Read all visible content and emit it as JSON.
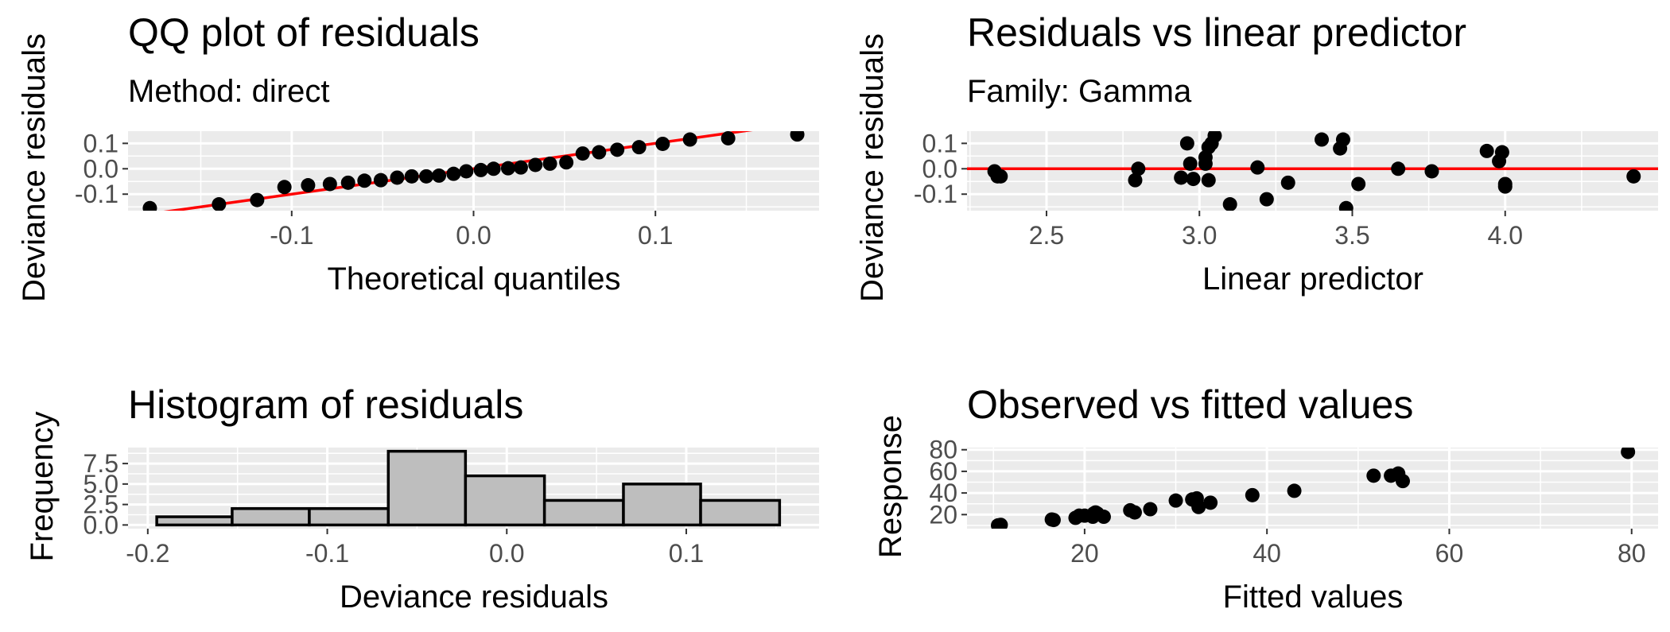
{
  "colors": {
    "panel_background": "#ebebeb",
    "grid": "#ffffff",
    "point": "#000000",
    "reference_line": "#ff0000",
    "bar_fill": "#bebebe",
    "bar_outline": "#000000"
  },
  "chart_data": [
    {
      "id": "qq",
      "type": "scatter",
      "title": "QQ plot of residuals",
      "subtitle": "Method: direct",
      "xlabel": "Theoretical quantiles",
      "ylabel": "Deviance residuals",
      "xlim": [
        -0.19,
        0.19
      ],
      "ylim": [
        -0.165,
        0.148
      ],
      "xticks": [
        -0.1,
        0.0,
        0.1
      ],
      "xtick_labels": [
        "-0.1",
        "0.0",
        "0.1"
      ],
      "yticks": [
        -0.1,
        0.0,
        0.1
      ],
      "ytick_labels": [
        "-0.1",
        "0.0",
        "0.1"
      ],
      "grid": true,
      "reference_line": {
        "color": "#ff0000",
        "x": [
          -0.19,
          0.19
        ],
        "y": [
          -0.19,
          0.19
        ]
      },
      "points": {
        "x": [
          -0.178,
          -0.14,
          -0.119,
          -0.104,
          -0.091,
          -0.079,
          -0.069,
          -0.06,
          -0.051,
          -0.042,
          -0.034,
          -0.026,
          -0.019,
          -0.011,
          -0.004,
          0.004,
          0.011,
          0.019,
          0.026,
          0.034,
          0.042,
          0.051,
          0.06,
          0.069,
          0.079,
          0.091,
          0.104,
          0.119,
          0.14,
          0.178
        ],
        "y": [
          -0.155,
          -0.14,
          -0.123,
          -0.072,
          -0.065,
          -0.06,
          -0.055,
          -0.047,
          -0.045,
          -0.035,
          -0.03,
          -0.03,
          -0.027,
          -0.02,
          -0.01,
          -0.005,
          0.0,
          0.002,
          0.005,
          0.015,
          0.02,
          0.025,
          0.06,
          0.065,
          0.075,
          0.085,
          0.098,
          0.115,
          0.12,
          0.135
        ]
      }
    },
    {
      "id": "resid-lp",
      "type": "scatter",
      "title": "Residuals vs linear predictor",
      "subtitle": "Family: Gamma",
      "xlabel": "Linear predictor",
      "ylabel": "Deviance residuals",
      "xlim": [
        2.24,
        4.5
      ],
      "ylim": [
        -0.165,
        0.148
      ],
      "xticks": [
        2.5,
        3.0,
        3.5,
        4.0
      ],
      "xtick_labels": [
        "2.5",
        "3.0",
        "3.5",
        "4.0"
      ],
      "yticks": [
        -0.1,
        0.0,
        0.1
      ],
      "ytick_labels": [
        "-0.1",
        "0.0",
        "0.1"
      ],
      "grid": true,
      "reference_line": {
        "color": "#ff0000",
        "y": 0.0
      },
      "points": {
        "x": [
          2.33,
          2.34,
          2.35,
          2.79,
          2.8,
          2.94,
          2.96,
          2.97,
          2.98,
          3.02,
          3.02,
          3.03,
          3.03,
          3.04,
          3.05,
          3.1,
          3.19,
          3.22,
          3.29,
          3.4,
          3.46,
          3.47,
          3.48,
          3.52,
          3.65,
          3.76,
          3.94,
          3.98,
          3.99,
          4.0,
          4.0,
          4.42
        ],
        "y": [
          -0.01,
          -0.03,
          -0.03,
          -0.045,
          0.0,
          -0.035,
          0.1,
          0.02,
          -0.04,
          0.02,
          0.045,
          0.085,
          -0.045,
          0.1,
          0.13,
          -0.14,
          0.005,
          -0.12,
          -0.055,
          0.115,
          0.08,
          0.115,
          -0.155,
          -0.06,
          0.0,
          -0.01,
          0.07,
          0.03,
          0.065,
          -0.06,
          -0.07,
          -0.03
        ]
      }
    },
    {
      "id": "hist",
      "type": "bar",
      "title": "Histogram of residuals",
      "xlabel": "Deviance residuals",
      "ylabel": "Frequency",
      "xlim": [
        -0.211,
        0.174
      ],
      "ylim": [
        -0.45,
        9.45
      ],
      "xticks": [
        -0.2,
        -0.1,
        0.0,
        0.1
      ],
      "xtick_labels": [
        "-0.2",
        "-0.1",
        "0.0",
        "0.1"
      ],
      "yticks": [
        0.0,
        2.5,
        5.0,
        7.5
      ],
      "ytick_labels": [
        "0.0",
        "2.5",
        "5.0",
        "7.5"
      ],
      "grid": true,
      "bins": [
        {
          "x0": -0.195,
          "x1": -0.153,
          "count": 1
        },
        {
          "x0": -0.153,
          "x1": -0.11,
          "count": 2
        },
        {
          "x0": -0.11,
          "x1": -0.066,
          "count": 2
        },
        {
          "x0": -0.066,
          "x1": -0.023,
          "count": 9
        },
        {
          "x0": -0.023,
          "x1": 0.021,
          "count": 6
        },
        {
          "x0": 0.021,
          "x1": 0.065,
          "count": 3
        },
        {
          "x0": 0.065,
          "x1": 0.108,
          "count": 5
        },
        {
          "x0": 0.108,
          "x1": 0.152,
          "count": 3
        }
      ]
    },
    {
      "id": "obs-fit",
      "type": "scatter",
      "title": "Observed vs fitted values",
      "xlabel": "Fitted values",
      "ylabel": "Response",
      "xlim": [
        7.1,
        82.9
      ],
      "ylim": [
        7.0,
        82.0
      ],
      "xticks": [
        20,
        40,
        60,
        80
      ],
      "xtick_labels": [
        "20",
        "40",
        "60",
        "80"
      ],
      "yticks": [
        20,
        40,
        60,
        80
      ],
      "ytick_labels": [
        "20",
        "40",
        "60",
        "80"
      ],
      "grid": true,
      "points": {
        "x": [
          10.5,
          10.8,
          16.4,
          16.6,
          19.0,
          19.4,
          20.0,
          20.9,
          21.0,
          21.2,
          21.4,
          22.1,
          25.0,
          25.5,
          27.2,
          30.0,
          31.8,
          32.1,
          32.3,
          32.5,
          33.8,
          38.4,
          43.0,
          51.7,
          53.6,
          54.4,
          54.9,
          79.6
        ],
        "y": [
          10.0,
          10.5,
          15.5,
          15.0,
          17.0,
          19.0,
          19.0,
          18.0,
          21.0,
          22.0,
          21.0,
          18.0,
          24.0,
          22.0,
          25.0,
          33.0,
          34.0,
          33.0,
          35.0,
          27.0,
          31.0,
          38.0,
          42.0,
          56.0,
          56.0,
          58.0,
          51.0,
          78.0
        ]
      }
    }
  ]
}
